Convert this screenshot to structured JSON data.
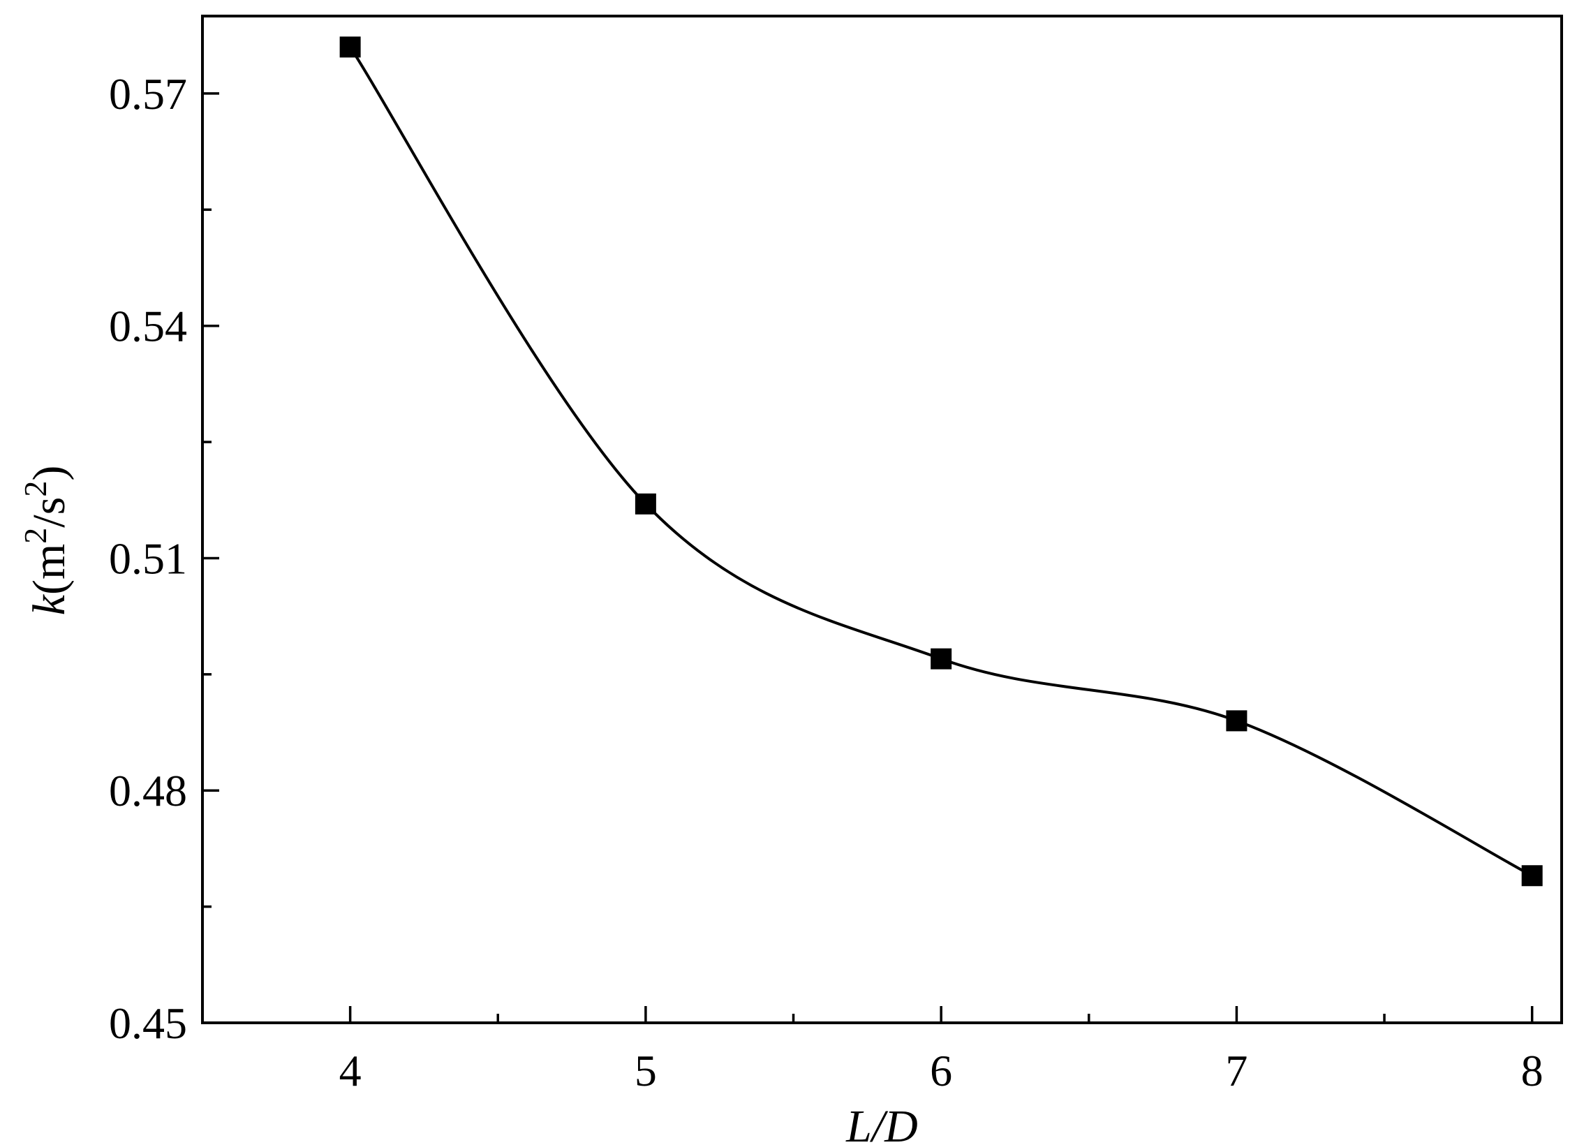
{
  "chart_data": {
    "type": "line",
    "title": "",
    "xlabel": "L/D",
    "ylabel": {
      "symbol": "k",
      "open": "(m",
      "sup1": "2",
      "mid": "/s",
      "sup2": "2",
      "close": ")"
    },
    "xlim": [
      3.5,
      8.1
    ],
    "ylim": [
      0.45,
      0.58
    ],
    "x_ticks": [
      4,
      5,
      6,
      7,
      8
    ],
    "x_tick_labels": [
      "4",
      "5",
      "6",
      "7",
      "8"
    ],
    "x_minor_ticks": [
      4.5,
      5.5,
      6.5,
      7.5
    ],
    "y_ticks": [
      0.45,
      0.48,
      0.51,
      0.54,
      0.57
    ],
    "y_tick_labels": [
      "0.45",
      "0.48",
      "0.51",
      "0.54",
      "0.57"
    ],
    "y_minor_ticks": [
      0.465,
      0.495,
      0.525,
      0.555
    ],
    "grid": false,
    "legend": "none",
    "marker": "square",
    "smooth": true,
    "color": "#000000",
    "series": [
      {
        "x": [
          4,
          5,
          6,
          7,
          8
        ],
        "y": [
          0.576,
          0.517,
          0.497,
          0.489,
          0.469
        ]
      }
    ]
  }
}
